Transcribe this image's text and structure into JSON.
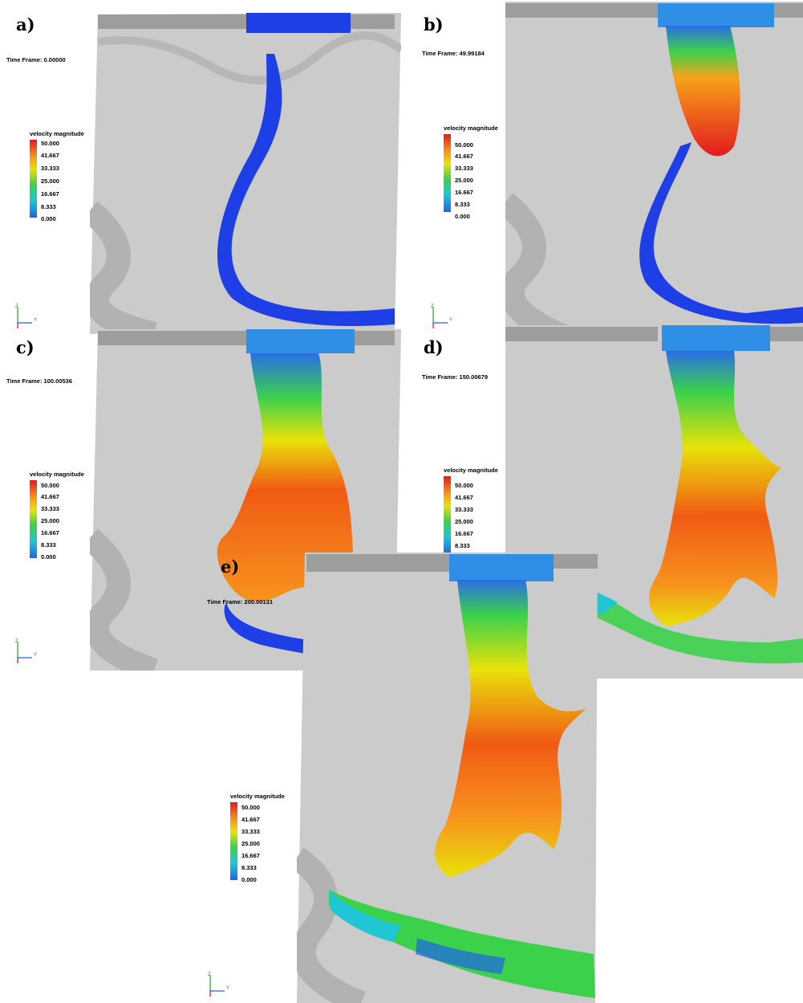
{
  "panels": [
    {
      "letter": "a)",
      "time_frame": "Time Frame:  0.00000"
    },
    {
      "letter": "b)",
      "time_frame": "Time Frame:  49.99184"
    },
    {
      "letter": "c)",
      "time_frame": "Time Frame:  100.00536"
    },
    {
      "letter": "d)",
      "time_frame": "Time Frame:  150.00679"
    },
    {
      "letter": "e)",
      "time_frame": "Time Frame:  200.00131"
    }
  ],
  "legend": {
    "title": "velocity magnitude",
    "ticks": [
      "50.000",
      "41.667",
      "33.333",
      "25.000",
      "16.667",
      "8.333",
      "0.000"
    ],
    "colors": [
      "#e31a1c",
      "#f7941d",
      "#e8e20a",
      "#3cd14b",
      "#1fc7d4",
      "#1e64e8"
    ]
  },
  "axes": {
    "z": "Z",
    "y": "Y",
    "x": "X"
  },
  "colors": {
    "terrain": "#c9c9c9",
    "water": "#1f3fe6",
    "hot": "#f05a14",
    "warm": "#f7a21a",
    "cool": "#22c3d8"
  }
}
